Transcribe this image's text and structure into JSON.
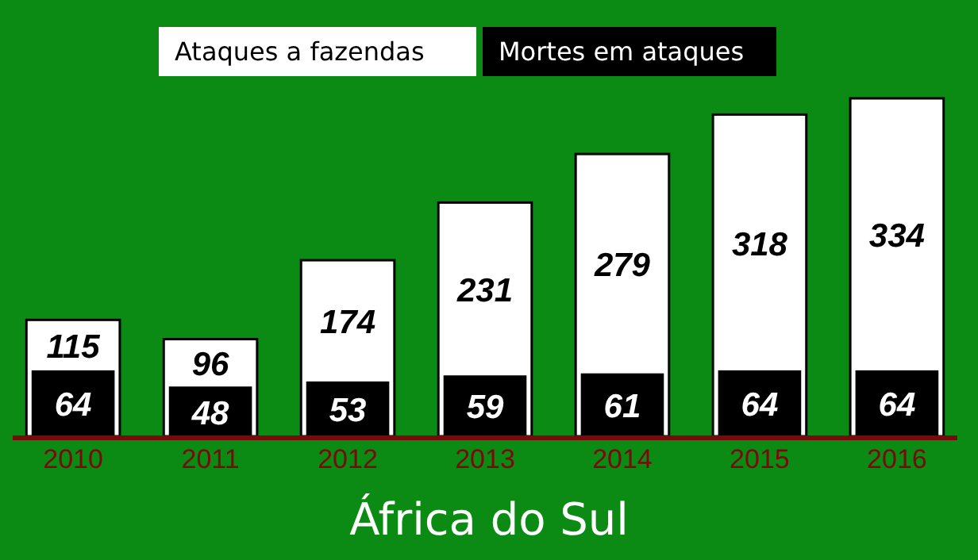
{
  "chart_data": {
    "type": "bar",
    "title": "África do Sul",
    "categories": [
      "2010",
      "2011",
      "2012",
      "2013",
      "2014",
      "2015",
      "2016"
    ],
    "series": [
      {
        "name": "Ataques a fazendas",
        "color": "#ffffff",
        "values": [
          115,
          96,
          174,
          231,
          279,
          318,
          334
        ]
      },
      {
        "name": "Mortes em ataques",
        "color": "#000000",
        "values": [
          64,
          48,
          53,
          59,
          61,
          64,
          64
        ]
      }
    ],
    "data_labels": true,
    "legend": "top"
  }
}
